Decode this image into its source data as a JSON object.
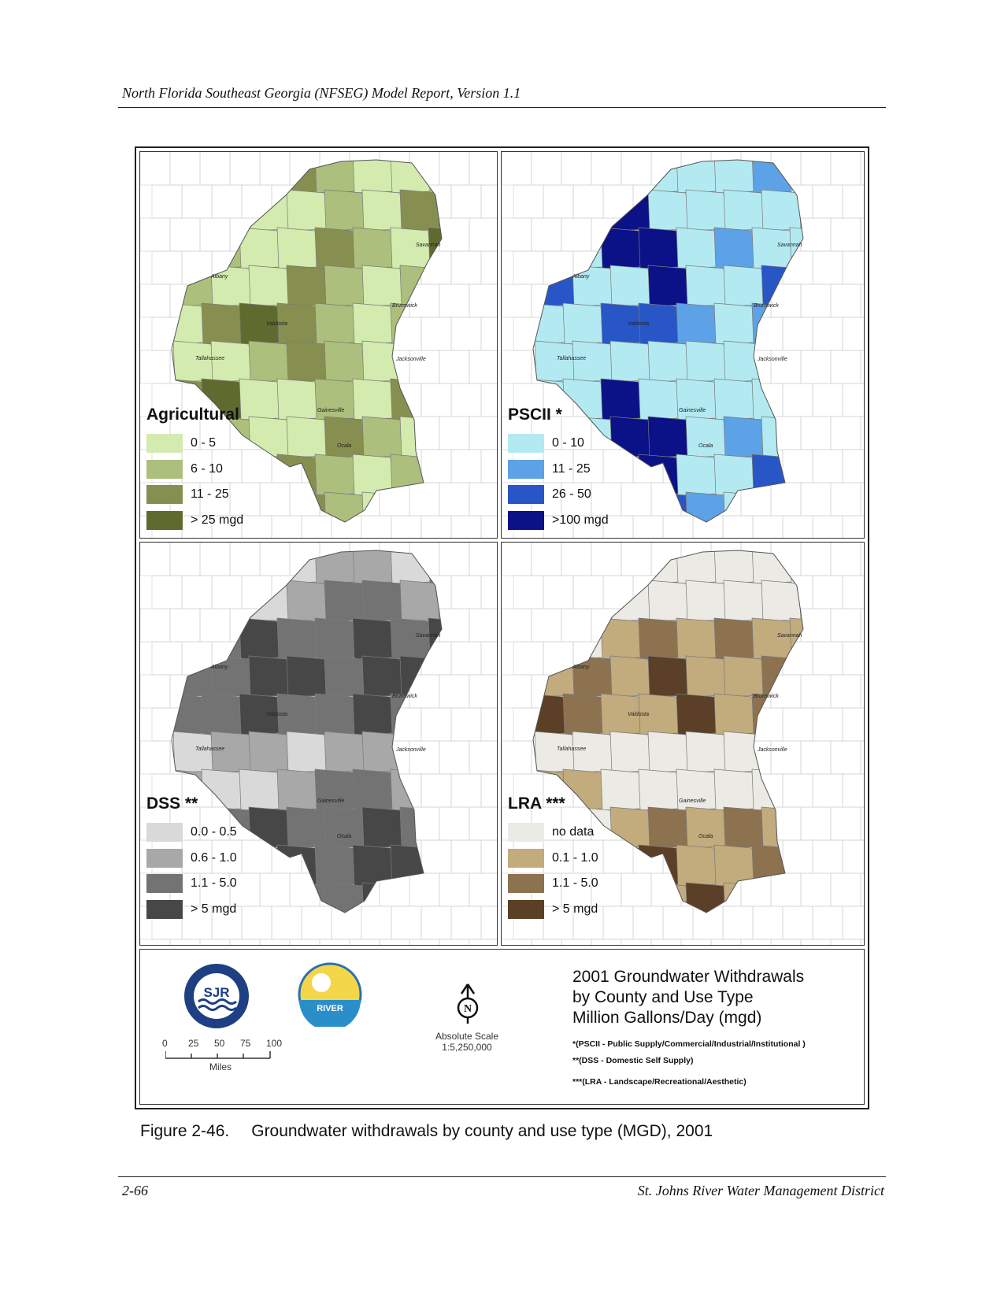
{
  "header": {
    "running_title": "North Florida Southeast Georgia (NFSEG) Model Report, Version 1.1"
  },
  "panels": [
    {
      "title": "Agricultural",
      "colors": [
        "#d3ebae",
        "#adbf7c",
        "#878f50",
        "#5f6b2e"
      ],
      "legend": [
        {
          "label": "0 - 5",
          "color": "#d3ebae"
        },
        {
          "label": "6 - 10",
          "color": "#adbf7c"
        },
        {
          "label": "11 - 25",
          "color": "#878f50"
        },
        {
          "label": "> 25 mgd",
          "color": "#5f6b2e"
        }
      ]
    },
    {
      "title": "PSCII *",
      "colors": [
        "#b3eaf2",
        "#5da2e6",
        "#2856c7",
        "#0b1187"
      ],
      "legend": [
        {
          "label": "0 - 10",
          "color": "#b3eaf2"
        },
        {
          "label": "11 - 25",
          "color": "#5da2e6"
        },
        {
          "label": "26 - 50",
          "color": "#2856c7"
        },
        {
          "label": ">100 mgd",
          "color": "#0b1187"
        }
      ]
    },
    {
      "title": "DSS **",
      "colors": [
        "#d9d9d9",
        "#a8a8a8",
        "#737373",
        "#474747"
      ],
      "legend": [
        {
          "label": "0.0 - 0.5",
          "color": "#d9d9d9"
        },
        {
          "label": "0.6 - 1.0",
          "color": "#a8a8a8"
        },
        {
          "label": "1.1 - 5.0",
          "color": "#737373"
        },
        {
          "label": "> 5 mgd",
          "color": "#474747"
        }
      ]
    },
    {
      "title": "LRA ***",
      "colors": [
        "#eceae4",
        "#c2ab7d",
        "#8d7250",
        "#5b3f27"
      ],
      "legend": [
        {
          "label": "no data",
          "color": "#eceae4"
        },
        {
          "label": "0.1 - 1.0",
          "color": "#c2ab7d"
        },
        {
          "label": "1.1 - 5.0",
          "color": "#8d7250"
        },
        {
          "label": "> 5 mgd",
          "color": "#5b3f27"
        }
      ]
    }
  ],
  "city_labels": [
    "Savannah",
    "Albany",
    "Brunswick",
    "Valdosta",
    "Jacksonville",
    "Tallahassee",
    "Gainesville",
    "Ocala"
  ],
  "info": {
    "sjr_logo_text": "SJR",
    "river_logo_text": "RIVER",
    "north_letter": "N",
    "scale_label": "Absolute Scale",
    "scale_ratio": "1:5,250,000",
    "scale_ticks": [
      "0",
      "25",
      "50",
      "75",
      "100"
    ],
    "scale_unit": "Miles",
    "title_lines": [
      "2001 Groundwater Withdrawals",
      "by County and Use Type",
      "Million Gallons/Day (mgd)"
    ],
    "footnotes": [
      "*(PSCII - Public Supply/Commercial/Industrial/Institutional )",
      "**(DSS - Domestic Self Supply)",
      "***(LRA - Landscape/Recreational/Aesthetic)"
    ]
  },
  "caption": {
    "number": "Figure 2-46.",
    "text": "Groundwater withdrawals by county and use type (MGD), 2001"
  },
  "footer": {
    "page": "2-66",
    "org": "St. Johns River Water Management District"
  }
}
